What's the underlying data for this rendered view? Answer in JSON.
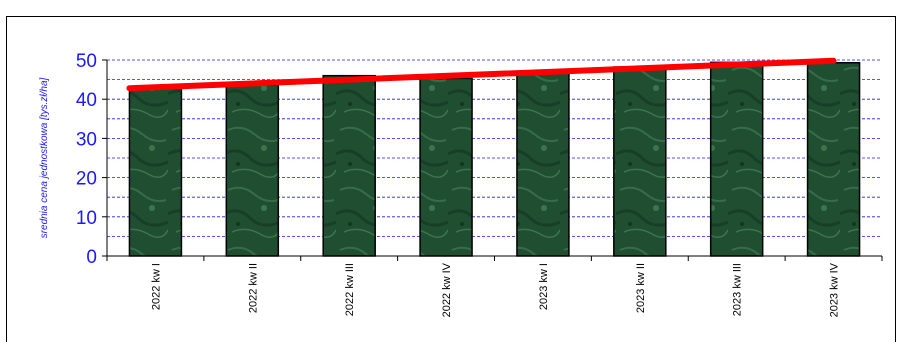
{
  "chart_data": {
    "type": "bar",
    "title": "",
    "xlabel": "",
    "ylabel": "srednia cena jednostkowa [tys.zł/ha]",
    "categories": [
      "2022 kw I",
      "2022 kw II",
      "2022 kw III",
      "2022 kw IV",
      "2023 kw I",
      "2023 kw II",
      "2023 kw III",
      "2023 kw IV"
    ],
    "series": [
      {
        "values": [
          43.2,
          43.6,
          46.0,
          45.3,
          46.8,
          48.2,
          49.4,
          49.3
        ]
      }
    ],
    "trendline": {
      "start": 42.8,
      "end": 49.8,
      "color": "#ff0000"
    },
    "ylim": [
      0,
      50
    ],
    "yticks": [
      0,
      10,
      20,
      30,
      40,
      50
    ],
    "minor_grid_step": 5,
    "grid": true,
    "colors": {
      "bar": "#1f4f30",
      "axis_text": "#1a1aff",
      "grid": "#1a1aff",
      "trend": "#ff0000"
    }
  }
}
